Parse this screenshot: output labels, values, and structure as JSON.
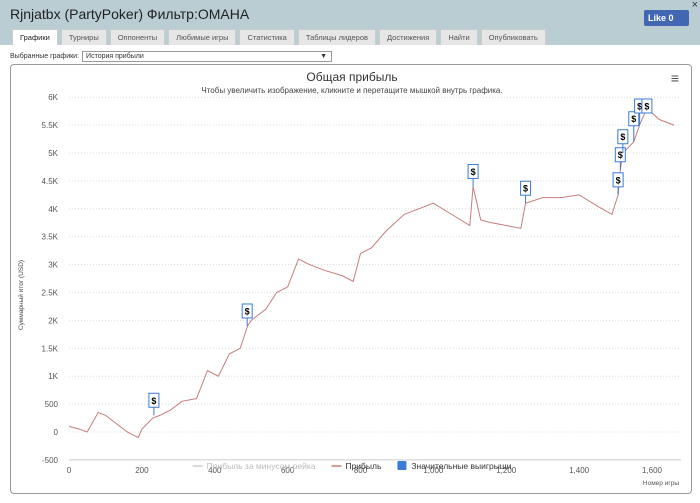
{
  "window": {
    "title": "Rjnjatbx (PartyPoker) Фильтр:OMAHA",
    "like_label": "Like 0",
    "close": "×"
  },
  "tabs": [
    {
      "label": "Графики",
      "active": true
    },
    {
      "label": "Турниры"
    },
    {
      "label": "Оппоненты"
    },
    {
      "label": "Любимые игры"
    },
    {
      "label": "Статистика"
    },
    {
      "label": "Таблицы лидеров"
    },
    {
      "label": "Достижения"
    },
    {
      "label": "Найти"
    },
    {
      "label": "Опубликовать"
    }
  ],
  "selector": {
    "label": "Выбранные графики:",
    "value": "История прибыли",
    "arrow": "▼"
  },
  "chart_data": {
    "type": "line",
    "title": "Общая прибыль",
    "subtitle": "Чтобы увеличить изображение, кликните и перетащите мышкой внутрь графика.",
    "xlabel": "Номер игры",
    "ylabel": "Суммарный итог (USD)",
    "xlim": [
      0,
      1650
    ],
    "ylim": [
      -500,
      6000
    ],
    "xticks": [
      0,
      200,
      400,
      600,
      800,
      1000,
      1200,
      1400,
      1600
    ],
    "xtick_labels": [
      "0",
      "200",
      "400",
      "600",
      "800",
      "1,000",
      "1,200",
      "1,400",
      "1,600"
    ],
    "yticks": [
      -500,
      0,
      500,
      1000,
      1500,
      2000,
      2500,
      3000,
      3500,
      4000,
      4500,
      5000,
      5500,
      6000
    ],
    "ytick_labels": [
      "-500",
      "0",
      "500",
      "1K",
      "1.5K",
      "2K",
      "2.5K",
      "3K",
      "3.5K",
      "4K",
      "4.5K",
      "5K",
      "5.5K",
      "6K"
    ],
    "grid": true,
    "legend": {
      "position": "bottom",
      "items": [
        {
          "name": "Прибыль за минусом рейка",
          "color": "#cccccc"
        },
        {
          "name": "Прибыль",
          "color": "#c77d7d"
        },
        {
          "name": "Значительные выигрыши",
          "color": "#3a7bd5"
        }
      ]
    },
    "series": [
      {
        "name": "Прибыль",
        "color": "#c77d7d",
        "points": [
          [
            0,
            100
          ],
          [
            30,
            50
          ],
          [
            50,
            0
          ],
          [
            80,
            350
          ],
          [
            100,
            300
          ],
          [
            130,
            150
          ],
          [
            160,
            0
          ],
          [
            190,
            -100
          ],
          [
            200,
            50
          ],
          [
            230,
            250
          ],
          [
            250,
            300
          ],
          [
            280,
            400
          ],
          [
            310,
            550
          ],
          [
            350,
            600
          ],
          [
            380,
            1100
          ],
          [
            410,
            1000
          ],
          [
            440,
            1400
          ],
          [
            470,
            1500
          ],
          [
            490,
            1900
          ],
          [
            500,
            2000
          ],
          [
            540,
            2200
          ],
          [
            570,
            2500
          ],
          [
            600,
            2600
          ],
          [
            630,
            3100
          ],
          [
            660,
            3000
          ],
          [
            700,
            2900
          ],
          [
            750,
            2800
          ],
          [
            780,
            2700
          ],
          [
            800,
            3200
          ],
          [
            830,
            3300
          ],
          [
            870,
            3600
          ],
          [
            920,
            3900
          ],
          [
            960,
            4000
          ],
          [
            1000,
            4100
          ],
          [
            1050,
            3900
          ],
          [
            1100,
            3700
          ],
          [
            1109,
            4400
          ],
          [
            1130,
            3800
          ],
          [
            1160,
            3750
          ],
          [
            1200,
            3700
          ],
          [
            1240,
            3650
          ],
          [
            1253,
            4100
          ],
          [
            1300,
            4200
          ],
          [
            1350,
            4200
          ],
          [
            1400,
            4250
          ],
          [
            1450,
            4050
          ],
          [
            1490,
            3900
          ],
          [
            1507,
            4250
          ],
          [
            1513,
            4700
          ],
          [
            1520,
            5000
          ],
          [
            1550,
            5200
          ],
          [
            1566,
            5500
          ],
          [
            1586,
            5800
          ],
          [
            1620,
            5600
          ],
          [
            1660,
            5500
          ]
        ]
      }
    ],
    "big_wins": [
      {
        "x": 233,
        "y": 300,
        "label": "$"
      },
      {
        "x": 489,
        "y": 1900,
        "label": "$"
      },
      {
        "x": 1109,
        "y": 4400,
        "label": "$"
      },
      {
        "x": 1253,
        "y": 4100,
        "label": "$"
      },
      {
        "x": 1507,
        "y": 4250,
        "label": "$"
      },
      {
        "x": 1513,
        "y": 4700,
        "label": "$"
      },
      {
        "x": 1520,
        "y": 5000,
        "label": "$"
      },
      {
        "x": 1550,
        "y": 5200,
        "label": "$"
      },
      {
        "x": 1566,
        "y": 5500,
        "label": "$"
      },
      {
        "x": 1586,
        "y": 5800,
        "label": "$"
      }
    ]
  }
}
